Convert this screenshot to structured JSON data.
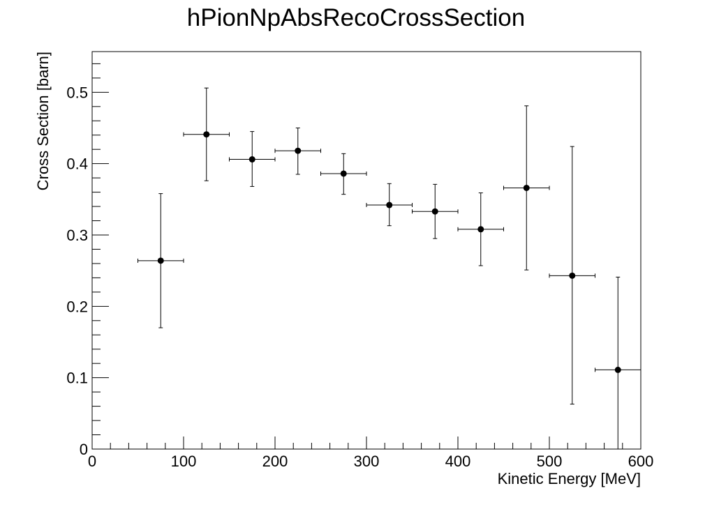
{
  "chart_data": {
    "type": "scatter",
    "title": "hPionNpAbsRecoCrossSection",
    "xlabel": "Kinetic Energy [MeV]",
    "ylabel": "Cross Section [barn]",
    "xlim": [
      0,
      600
    ],
    "ylim": [
      0,
      0.557
    ],
    "x_ticks": [
      0,
      100,
      200,
      300,
      400,
      500,
      600
    ],
    "x_tick_labels": [
      "0",
      "100",
      "200",
      "300",
      "400",
      "500",
      "600"
    ],
    "y_ticks": [
      0,
      0.1,
      0.2,
      0.3,
      0.4,
      0.5
    ],
    "y_tick_labels": [
      "0",
      "0.1",
      "0.2",
      "0.3",
      "0.4",
      "0.5"
    ],
    "grid": false,
    "legend": "none",
    "marker_color": "#000000",
    "series": [
      {
        "points": [
          {
            "x": 75,
            "x_err": 25,
            "y": 0.264,
            "y_low": 0.17,
            "y_high": 0.358
          },
          {
            "x": 125,
            "x_err": 25,
            "y": 0.441,
            "y_low": 0.376,
            "y_high": 0.506
          },
          {
            "x": 175,
            "x_err": 25,
            "y": 0.406,
            "y_low": 0.368,
            "y_high": 0.445
          },
          {
            "x": 225,
            "x_err": 25,
            "y": 0.418,
            "y_low": 0.385,
            "y_high": 0.45
          },
          {
            "x": 275,
            "x_err": 25,
            "y": 0.386,
            "y_low": 0.357,
            "y_high": 0.414
          },
          {
            "x": 325,
            "x_err": 25,
            "y": 0.342,
            "y_low": 0.313,
            "y_high": 0.372
          },
          {
            "x": 375,
            "x_err": 25,
            "y": 0.333,
            "y_low": 0.295,
            "y_high": 0.371
          },
          {
            "x": 425,
            "x_err": 25,
            "y": 0.308,
            "y_low": 0.257,
            "y_high": 0.359
          },
          {
            "x": 475,
            "x_err": 25,
            "y": 0.366,
            "y_low": 0.251,
            "y_high": 0.481
          },
          {
            "x": 525,
            "x_err": 25,
            "y": 0.243,
            "y_low": 0.063,
            "y_high": 0.424
          },
          {
            "x": 575,
            "x_err": 25,
            "y": 0.111,
            "y_low": 0.0,
            "y_high": 0.241
          }
        ]
      }
    ]
  }
}
